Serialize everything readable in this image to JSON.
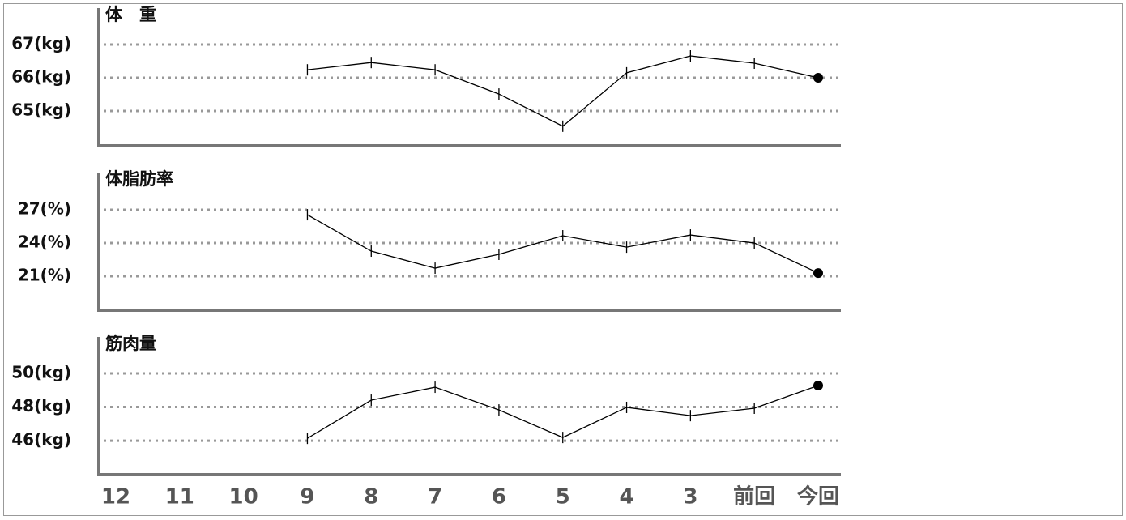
{
  "chart_data": [
    {
      "type": "line",
      "title": "体　重",
      "color": "#000000",
      "values": [
        null,
        null,
        null,
        66.24,
        66.46,
        66.24,
        65.51,
        64.54,
        66.15,
        66.66,
        66.44,
        66.0
      ],
      "ylim": [
        63.95,
        68.1
      ],
      "yticks": [
        {
          "value": 65,
          "label": "65(kg)"
        },
        {
          "value": 66,
          "label": "66(kg)"
        },
        {
          "value": 67,
          "label": "67(kg)"
        }
      ],
      "grid": true
    },
    {
      "type": "line",
      "title": "体脂肪率",
      "color": "#000000",
      "values": [
        null,
        null,
        null,
        26.56,
        23.27,
        21.73,
        22.98,
        24.66,
        23.63,
        24.73,
        24.0,
        21.29
      ],
      "ylim": [
        17.93,
        30.37
      ],
      "yticks": [
        {
          "value": 21,
          "label": "21(%)"
        },
        {
          "value": 24,
          "label": "24(%)"
        },
        {
          "value": 27,
          "label": "27(%)"
        }
      ],
      "grid": true
    },
    {
      "type": "line",
      "title": "筋肉量",
      "color": "#000000",
      "categories": [
        "12",
        "11",
        "10",
        "9",
        "8",
        "7",
        "6",
        "5",
        "4",
        "3",
        "前回",
        "今回"
      ],
      "values": [
        null,
        null,
        null,
        46.14,
        48.41,
        49.18,
        47.83,
        46.19,
        47.98,
        47.49,
        47.93,
        49.28
      ],
      "ylim": [
        43.98,
        52.17
      ],
      "yticks": [
        {
          "value": 46,
          "label": "46(kg)"
        },
        {
          "value": 48,
          "label": "48(kg)"
        },
        {
          "value": 50,
          "label": "50(kg)"
        }
      ],
      "grid": true
    }
  ]
}
